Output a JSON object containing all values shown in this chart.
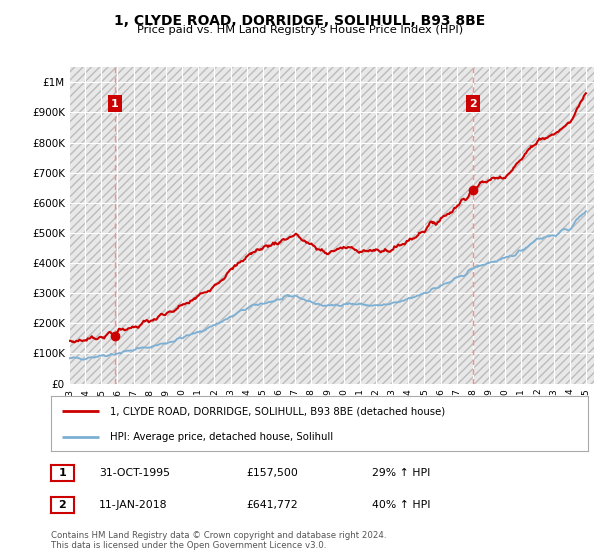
{
  "title": "1, CLYDE ROAD, DORRIDGE, SOLIHULL, B93 8BE",
  "subtitle": "Price paid vs. HM Land Registry's House Price Index (HPI)",
  "background_color": "#ffffff",
  "sale1_date": 1995.83,
  "sale1_price": 157500,
  "sale2_date": 2018.03,
  "sale2_price": 641772,
  "red_line_color": "#cc0000",
  "blue_line_color": "#7bafd4",
  "marker_color": "#cc0000",
  "vline_color": "#ff8888",
  "legend_entry1": "1, CLYDE ROAD, DORRIDGE, SOLIHULL, B93 8BE (detached house)",
  "legend_entry2": "HPI: Average price, detached house, Solihull",
  "table_row1": [
    "1",
    "31-OCT-1995",
    "£157,500",
    "29% ↑ HPI"
  ],
  "table_row2": [
    "2",
    "11-JAN-2018",
    "£641,772",
    "40% ↑ HPI"
  ],
  "footer": "Contains HM Land Registry data © Crown copyright and database right 2024.\nThis data is licensed under the Open Government Licence v3.0.",
  "ylim": [
    0,
    1050000
  ],
  "xlim": [
    1993,
    2025.5
  ],
  "yticks": [
    0,
    100000,
    200000,
    300000,
    400000,
    500000,
    600000,
    700000,
    800000,
    900000,
    1000000
  ],
  "ytick_labels": [
    "£0",
    "£100K",
    "£200K",
    "£300K",
    "£400K",
    "£500K",
    "£600K",
    "£700K",
    "£800K",
    "£900K",
    "£1M"
  ],
  "xticks": [
    1993,
    1994,
    1995,
    1996,
    1997,
    1998,
    1999,
    2000,
    2001,
    2002,
    2003,
    2004,
    2005,
    2006,
    2007,
    2008,
    2009,
    2010,
    2011,
    2012,
    2013,
    2014,
    2015,
    2016,
    2017,
    2018,
    2019,
    2020,
    2021,
    2022,
    2023,
    2024,
    2025
  ],
  "years_hpi": [
    1993,
    1994,
    1995,
    1996,
    1997,
    1998,
    1999,
    2000,
    2001,
    2002,
    2003,
    2004,
    2005,
    2006,
    2007,
    2008,
    2009,
    2010,
    2011,
    2012,
    2013,
    2014,
    2015,
    2016,
    2017,
    2018,
    2019,
    2020,
    2021,
    2022,
    2023,
    2024,
    2025
  ],
  "hpi_values": [
    82000,
    86000,
    93000,
    101000,
    112000,
    122000,
    135000,
    152000,
    170000,
    195000,
    220000,
    250000,
    267000,
    278000,
    292000,
    270000,
    256000,
    266000,
    263000,
    258000,
    263000,
    280000,
    302000,
    323000,
    347000,
    382000,
    402000,
    412000,
    442000,
    482000,
    492000,
    515000,
    575000
  ],
  "hpi_at_sale1": 93000,
  "hpi_at_sale2": 382000
}
